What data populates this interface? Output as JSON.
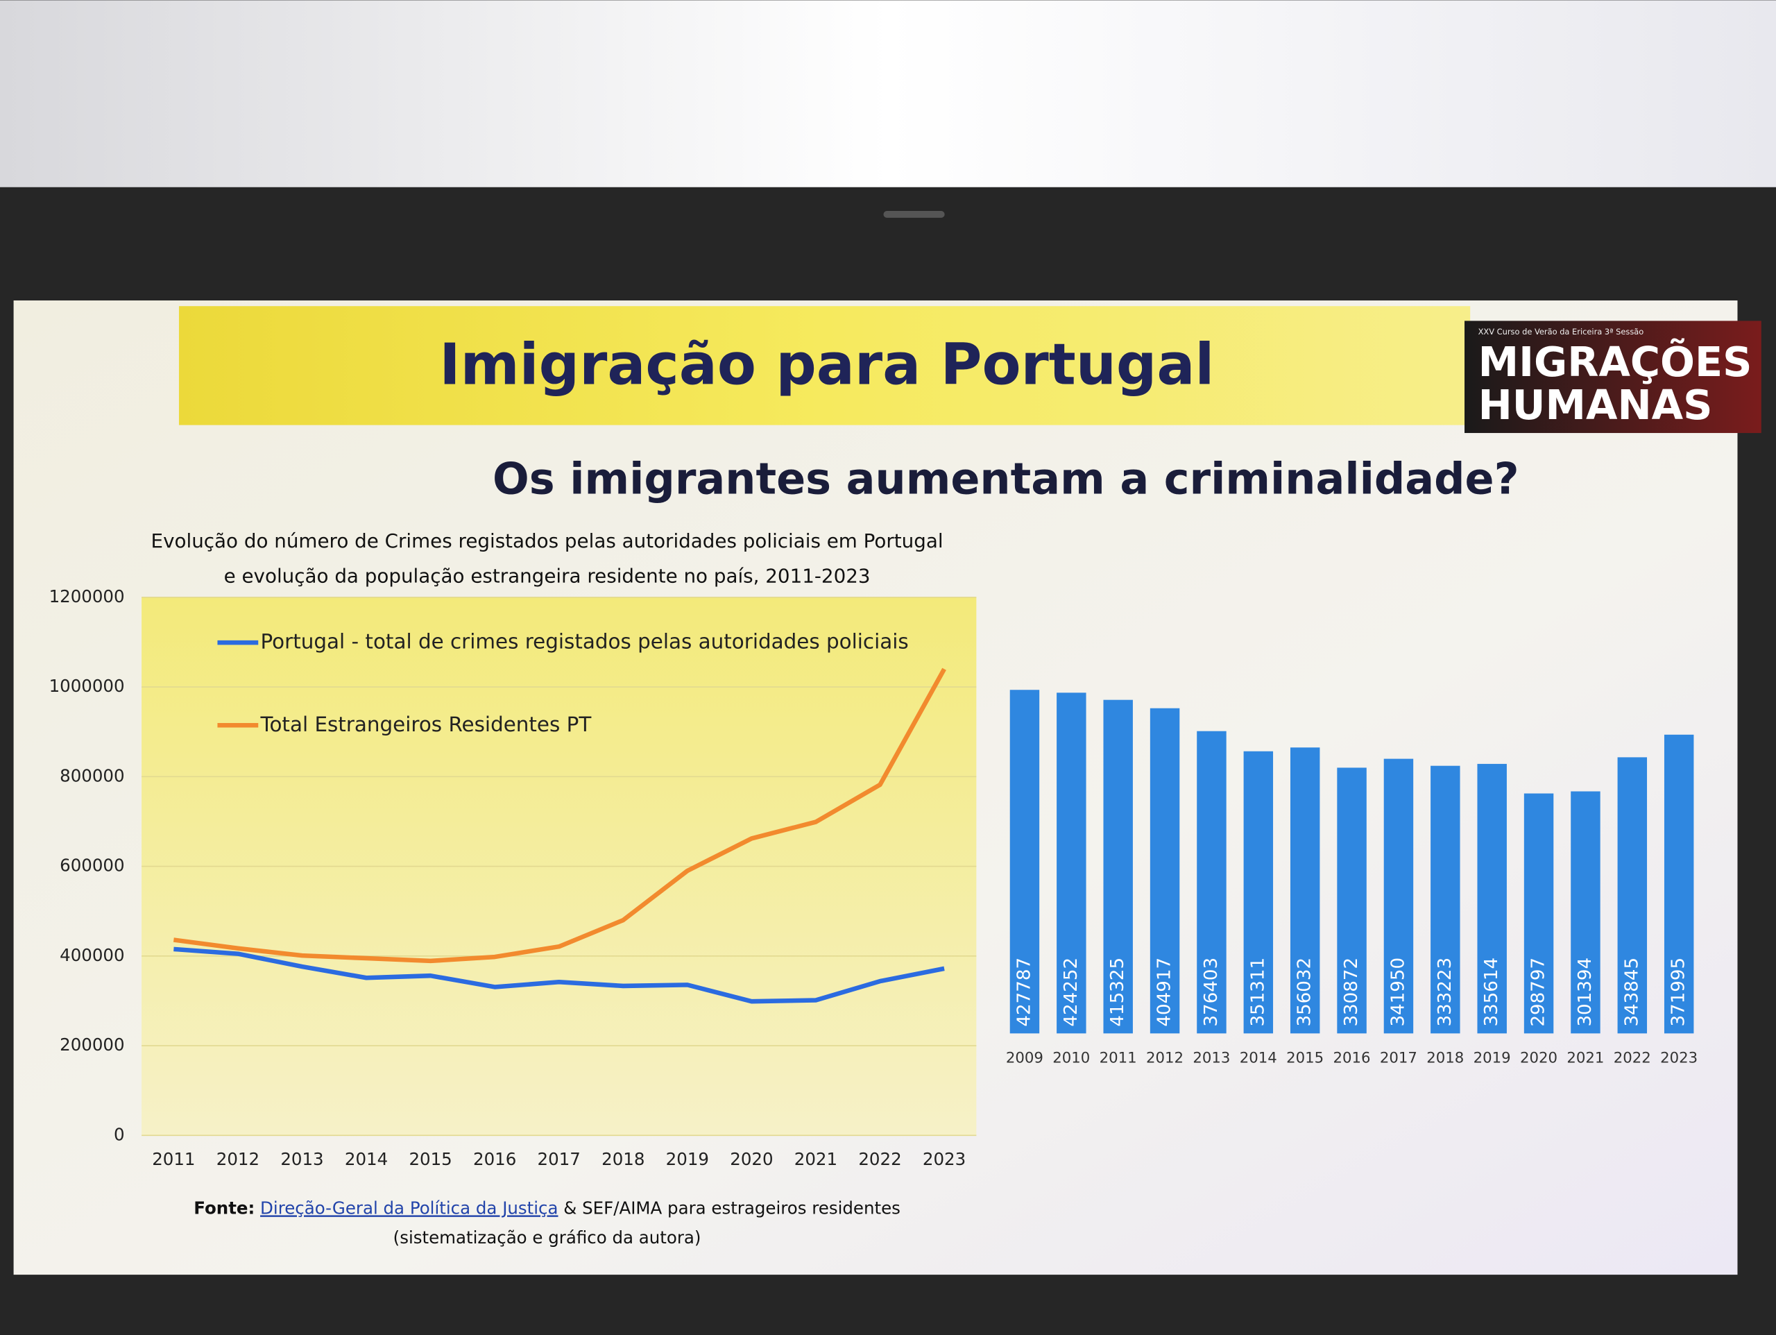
{
  "slide": {
    "title": "Imigração para Portugal",
    "subtitle": "Os imigrantes aumentam a criminalidade?",
    "logo_caption": "XXV Curso de Verão da Ericeira 3ª Sessão",
    "logo_line1": "MIGRAÇÕES",
    "logo_line2": "HUMANAS",
    "source_label": "Fonte:",
    "source_link": "Direção-Geral da Política da Justiça",
    "source_rest": "& SEF/AIMA para estrageiros residentes",
    "source_note": "(sistematização e gráfico da autora)"
  },
  "chart_data": [
    {
      "type": "line",
      "title": [
        "Evolução do número de Crimes registados pelas autoridades policiais em Portugal",
        "e evolução da população estrangeira residente no país, 2011-2023"
      ],
      "categories": [
        "2011",
        "2012",
        "2013",
        "2014",
        "2015",
        "2016",
        "2017",
        "2018",
        "2019",
        "2020",
        "2021",
        "2022",
        "2023"
      ],
      "series": [
        {
          "name": "Portugal - total de crimes registados pelas autoridades policiais",
          "color": "#2b6be0",
          "values": [
            415325,
            404917,
            376403,
            351311,
            356032,
            330872,
            341950,
            333223,
            335614,
            298797,
            301394,
            343845,
            371995
          ]
        },
        {
          "name": "Total Estrangeiros Residentes PT",
          "color": "#f28a2e",
          "values": [
            436000,
            417000,
            401000,
            395000,
            389000,
            398000,
            421000,
            480000,
            590000,
            662000,
            699000,
            782000,
            1040000
          ]
        }
      ],
      "ylim": [
        0,
        1200000
      ],
      "yticks": [
        0,
        200000,
        400000,
        600000,
        800000,
        1000000,
        1200000
      ],
      "grid": true,
      "legend": "top-left"
    },
    {
      "type": "bar",
      "categories": [
        "2009",
        "2010",
        "2011",
        "2012",
        "2013",
        "2014",
        "2015",
        "2016",
        "2017",
        "2018",
        "2019",
        "2020",
        "2021",
        "2022",
        "2023"
      ],
      "values": [
        427787,
        424252,
        415325,
        404917,
        376403,
        351311,
        356032,
        330872,
        341950,
        333223,
        335614,
        298797,
        301394,
        343845,
        371995
      ],
      "color": "#2f87e0",
      "ylim": [
        0,
        450000
      ]
    }
  ]
}
